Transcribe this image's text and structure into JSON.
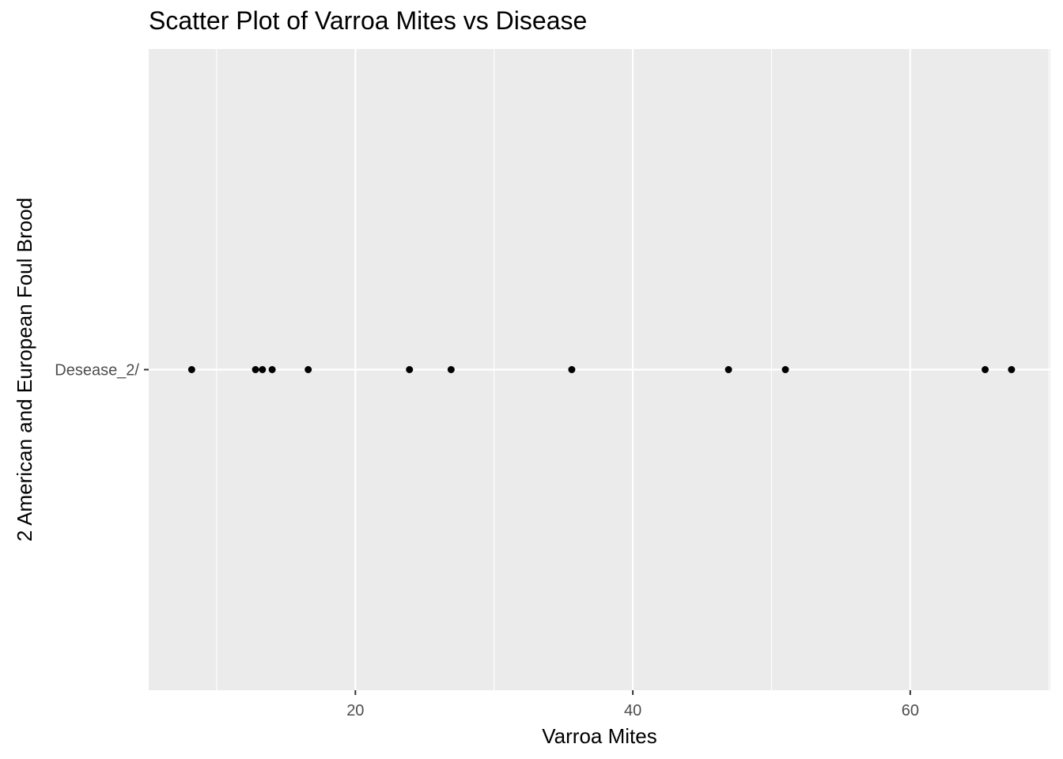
{
  "chart_data": {
    "type": "scatter",
    "title": "Scatter Plot of Varroa Mites vs Disease",
    "xlabel": "Varroa Mites",
    "ylabel": "2 American and European Foul Brood",
    "xlim": [
      5.1,
      70.1
    ],
    "x_ticks": [
      20,
      40,
      60
    ],
    "x_minor_ticks": [
      10,
      30,
      50,
      70
    ],
    "categories": [
      "Desease_2/"
    ],
    "points": [
      {
        "x": 8.2,
        "y": "Desease_2/"
      },
      {
        "x": 12.8,
        "y": "Desease_2/"
      },
      {
        "x": 13.3,
        "y": "Desease_2/"
      },
      {
        "x": 14.0,
        "y": "Desease_2/"
      },
      {
        "x": 16.6,
        "y": "Desease_2/"
      },
      {
        "x": 23.9,
        "y": "Desease_2/"
      },
      {
        "x": 26.9,
        "y": "Desease_2/"
      },
      {
        "x": 35.6,
        "y": "Desease_2/"
      },
      {
        "x": 46.9,
        "y": "Desease_2/"
      },
      {
        "x": 51.0,
        "y": "Desease_2/"
      },
      {
        "x": 65.4,
        "y": "Desease_2/"
      },
      {
        "x": 67.3,
        "y": "Desease_2/"
      }
    ],
    "grid": true,
    "legend": "none",
    "colors": {
      "panel": "#ebebeb",
      "grid": "#ffffff",
      "point": "#000000",
      "tick_text": "#4d4d4d"
    }
  }
}
